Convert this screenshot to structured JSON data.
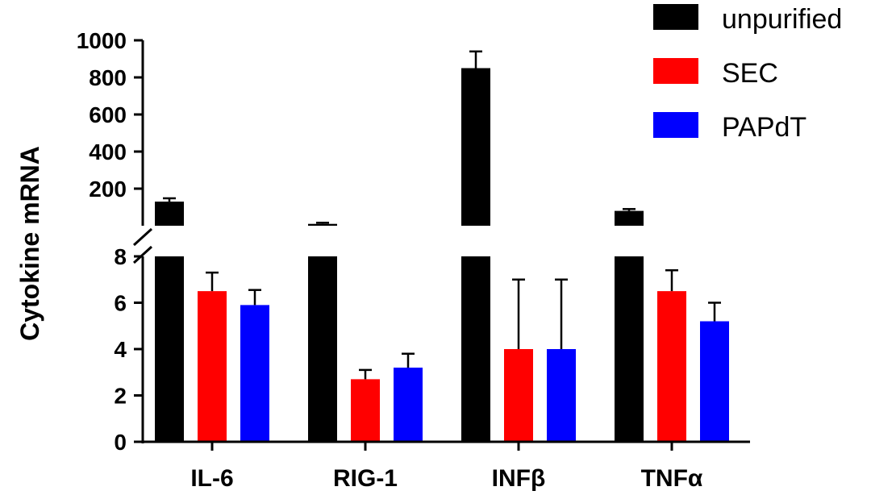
{
  "chart_data": {
    "type": "bar",
    "ylabel": "Cytokine mRNA",
    "xlabel": "",
    "title": "",
    "categories": [
      "IL-6",
      "RIG-1",
      "INFβ",
      "TNFα"
    ],
    "series": [
      {
        "name": "unpurified",
        "color": "#000000",
        "values": [
          130,
          10,
          850,
          80
        ],
        "errors": [
          18,
          6,
          90,
          10
        ]
      },
      {
        "name": "SEC",
        "color": "#ff0000",
        "values": [
          6.5,
          2.7,
          4,
          6.5
        ],
        "errors": [
          0.8,
          0.4,
          3,
          0.9
        ]
      },
      {
        "name": "PAPdT",
        "color": "#0000ff",
        "values": [
          5.9,
          3.2,
          4,
          5.2
        ],
        "errors": [
          0.65,
          0.6,
          3,
          0.8
        ]
      }
    ],
    "y_axis": {
      "broken": true,
      "lower_range": [
        0,
        8
      ],
      "upper_range": [
        0,
        1000
      ],
      "lower_ticks": [
        "0",
        "2",
        "4",
        "6",
        "8"
      ],
      "upper_ticks": [
        "200",
        "400",
        "600",
        "800",
        "1000"
      ]
    },
    "legend_position": "top-right",
    "grid": false
  }
}
